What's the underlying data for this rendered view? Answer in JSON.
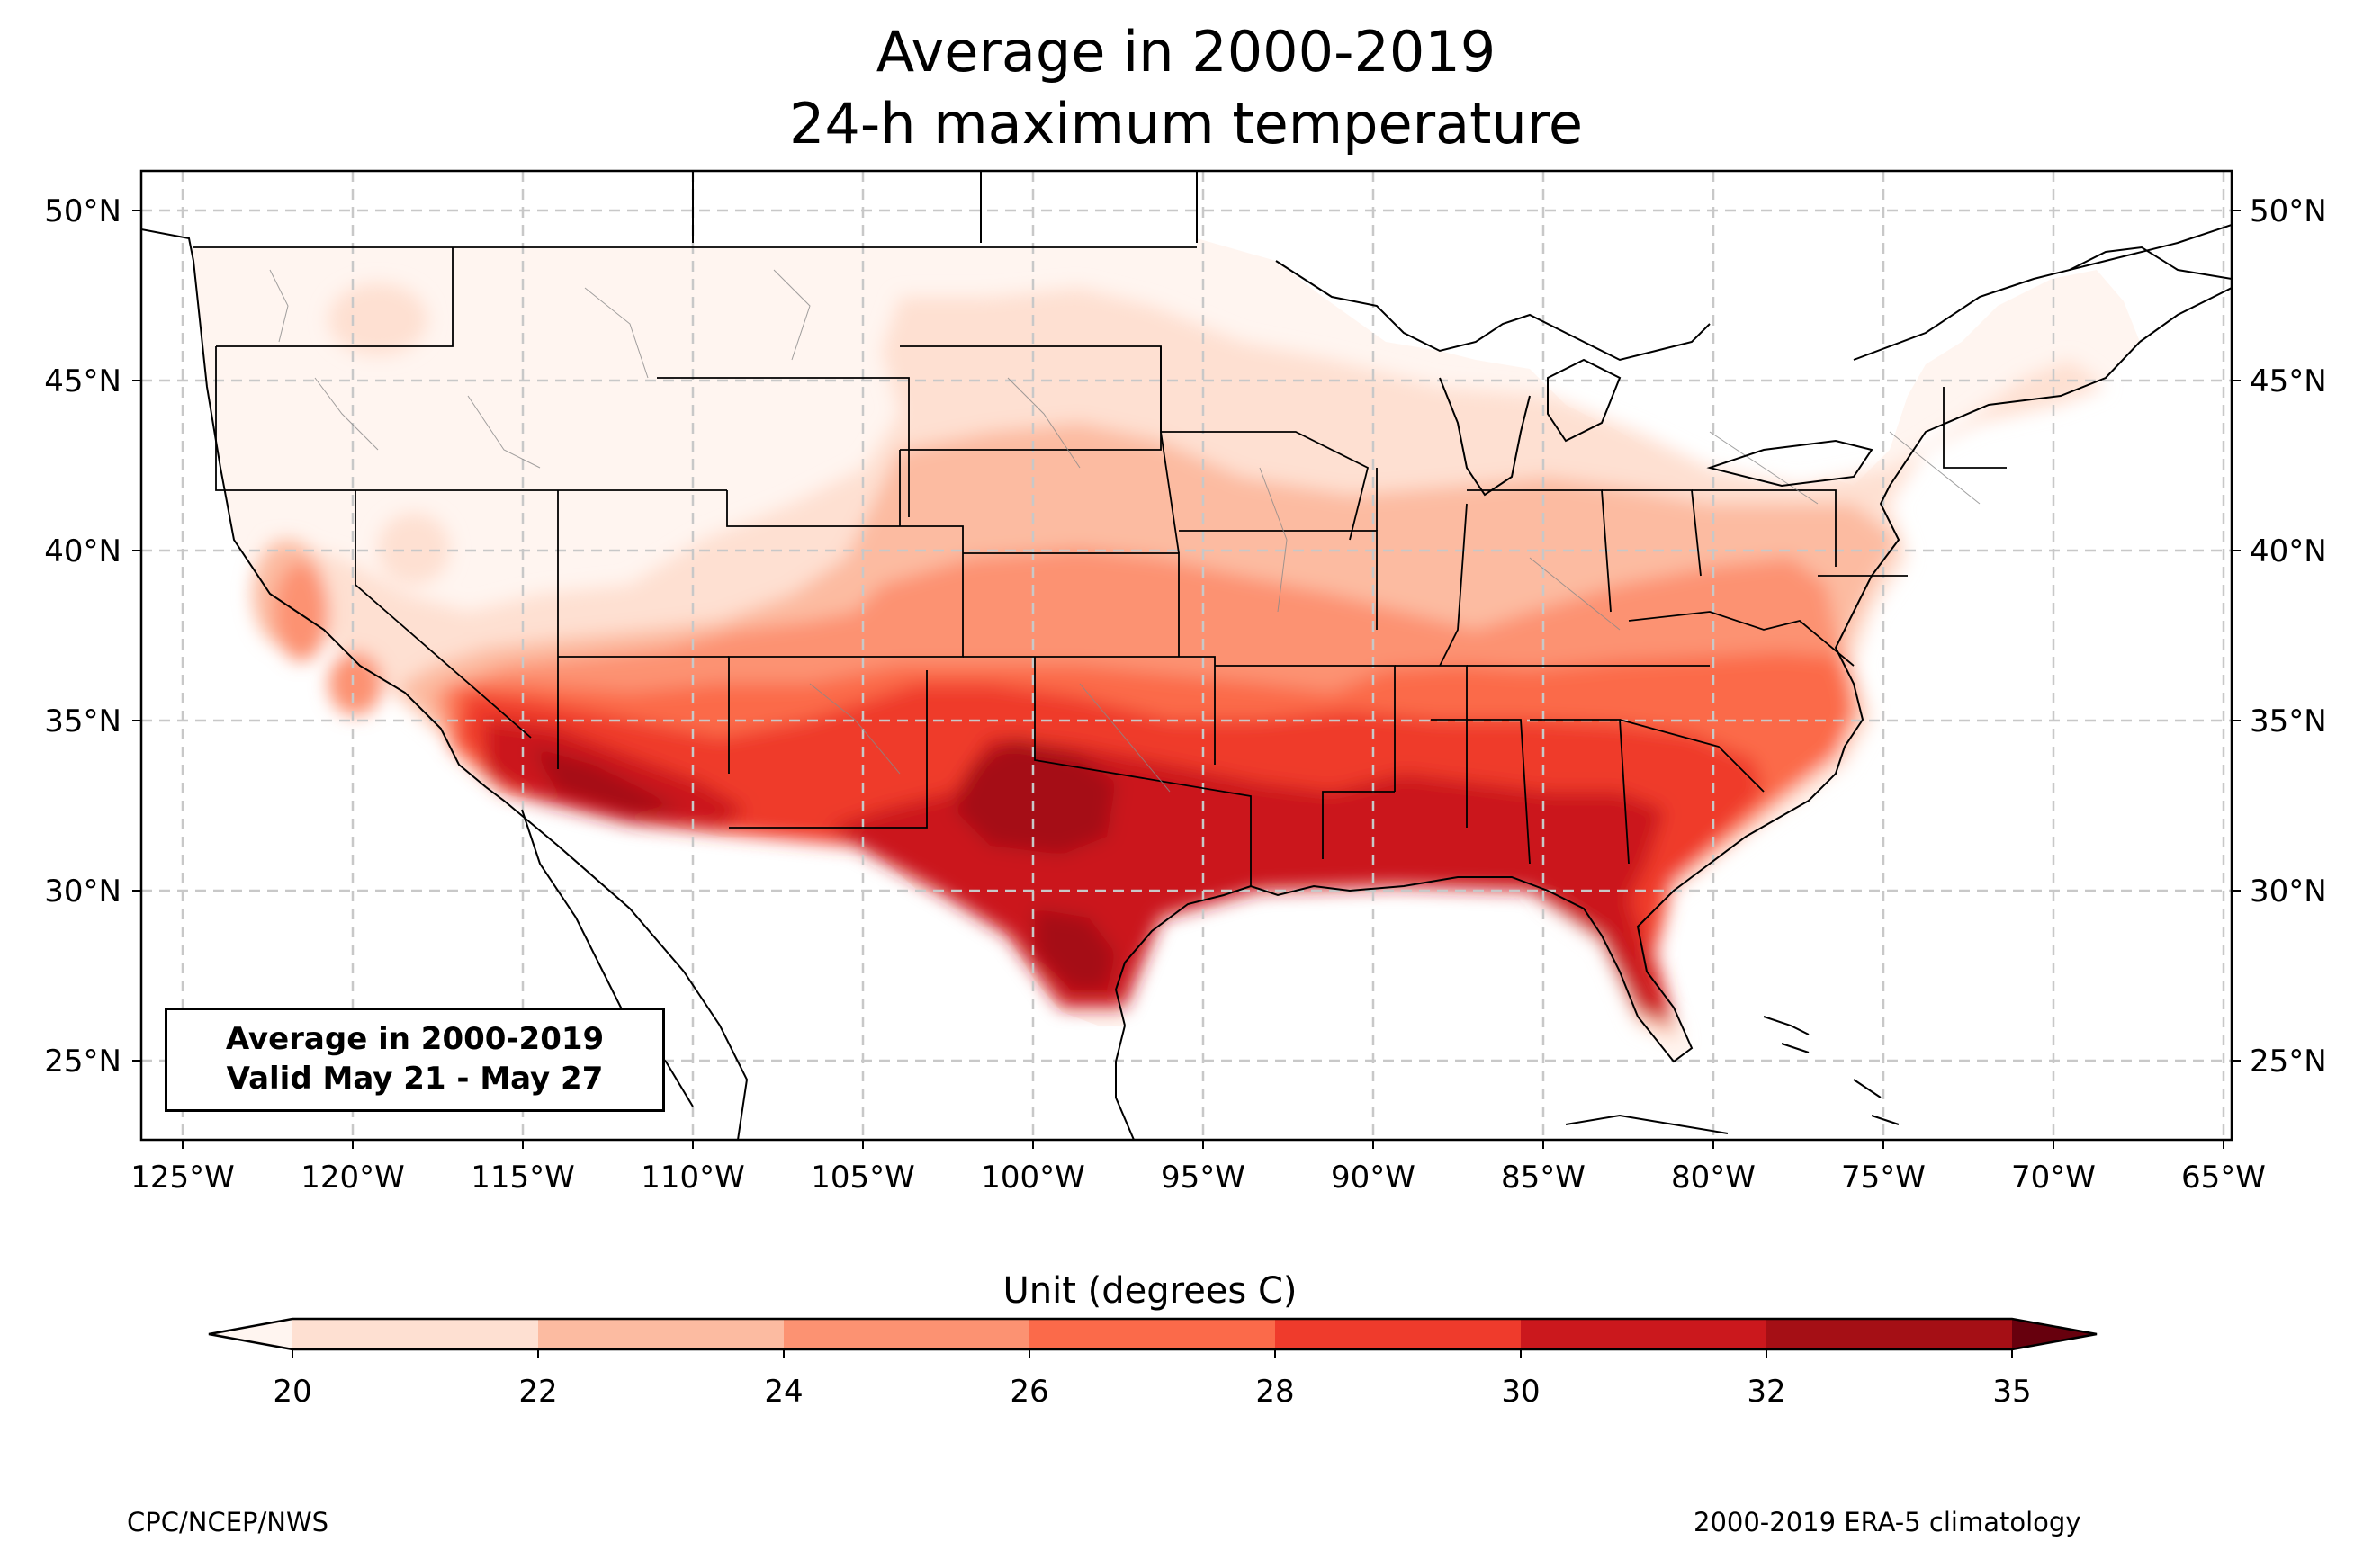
{
  "title": {
    "line1": "Average in 2000-2019",
    "line2": "24-h maximum temperature"
  },
  "map": {
    "lon_ticks": [
      "125°W",
      "120°W",
      "115°W",
      "110°W",
      "105°W",
      "100°W",
      "95°W",
      "90°W",
      "85°W",
      "80°W",
      "75°W",
      "70°W",
      "65°W"
    ],
    "lat_ticks": [
      "50°N",
      "45°N",
      "40°N",
      "35°N",
      "30°N",
      "25°N"
    ],
    "info_box": {
      "line1": "Average in 2000-2019",
      "line2": "Valid May 21 - May 27"
    }
  },
  "colorbar": {
    "label": "Unit (degrees C)",
    "ticks": [
      "20",
      "22",
      "24",
      "26",
      "28",
      "30",
      "32",
      "35"
    ],
    "colors": [
      "#fff5f0",
      "#fee0d2",
      "#fcbba1",
      "#fc9272",
      "#fb6a4a",
      "#ef3b2c",
      "#cb181d",
      "#a50f15",
      "#67000d"
    ]
  },
  "footer": {
    "left": "CPC/NCEP/NWS",
    "right": "2000-2019 ERA-5 climatology"
  }
}
